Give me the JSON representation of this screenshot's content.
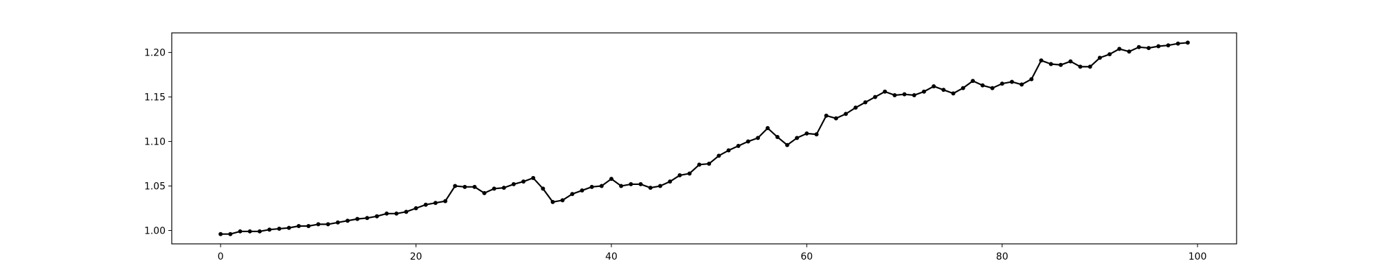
{
  "chart_data": {
    "type": "line",
    "title": "",
    "xlabel": "",
    "ylabel": "",
    "xlim": [
      -5,
      104
    ],
    "ylim": [
      0.985,
      1.222
    ],
    "x_ticks": [
      0,
      20,
      40,
      60,
      80,
      100
    ],
    "x_tick_labels": [
      "0",
      "20",
      "40",
      "60",
      "80",
      "100"
    ],
    "y_ticks": [
      1.0,
      1.05,
      1.1,
      1.15,
      1.2
    ],
    "y_tick_labels": [
      "1.00",
      "1.05",
      "1.10",
      "1.15",
      "1.20"
    ],
    "grid": false,
    "line_color": "#000000",
    "marker": "circle",
    "series": [
      {
        "x": [
          0,
          1,
          2,
          3,
          4,
          5,
          6,
          7,
          8,
          9,
          10,
          11,
          12,
          13,
          14,
          15,
          16,
          17,
          18,
          19,
          20,
          21,
          22,
          23,
          24,
          25,
          26,
          27,
          28,
          29,
          30,
          31,
          32,
          33,
          34,
          35,
          36,
          37,
          38,
          39,
          40,
          41,
          42,
          43,
          44,
          45,
          46,
          47,
          48,
          49,
          50,
          51,
          52,
          53,
          54,
          55,
          56,
          57,
          58,
          59,
          60,
          61,
          62,
          63,
          64,
          65,
          66,
          67,
          68,
          69,
          70,
          71,
          72,
          73,
          74,
          75,
          76,
          77,
          78,
          79,
          80,
          81,
          82,
          83,
          84,
          85,
          86,
          87,
          88,
          89,
          90,
          91,
          92,
          93,
          94,
          95,
          96,
          97,
          98,
          99
        ],
        "values": [
          0.996,
          0.996,
          0.999,
          0.999,
          0.999,
          1.001,
          1.002,
          1.003,
          1.005,
          1.005,
          1.007,
          1.007,
          1.009,
          1.011,
          1.013,
          1.014,
          1.016,
          1.019,
          1.019,
          1.021,
          1.025,
          1.029,
          1.031,
          1.033,
          1.05,
          1.049,
          1.049,
          1.042,
          1.047,
          1.048,
          1.052,
          1.055,
          1.059,
          1.047,
          1.032,
          1.034,
          1.041,
          1.045,
          1.049,
          1.05,
          1.058,
          1.05,
          1.052,
          1.052,
          1.048,
          1.05,
          1.055,
          1.062,
          1.064,
          1.074,
          1.075,
          1.084,
          1.09,
          1.095,
          1.1,
          1.104,
          1.115,
          1.105,
          1.096,
          1.104,
          1.109,
          1.108,
          1.129,
          1.126,
          1.131,
          1.138,
          1.144,
          1.15,
          1.156,
          1.152,
          1.153,
          1.152,
          1.156,
          1.162,
          1.158,
          1.154,
          1.16,
          1.168,
          1.163,
          1.16,
          1.165,
          1.167,
          1.164,
          1.17,
          1.191,
          1.187,
          1.186,
          1.19,
          1.184,
          1.184,
          1.194,
          1.198,
          1.204,
          1.201,
          1.206,
          1.205,
          1.207,
          1.208,
          1.21,
          1.211
        ]
      }
    ]
  }
}
